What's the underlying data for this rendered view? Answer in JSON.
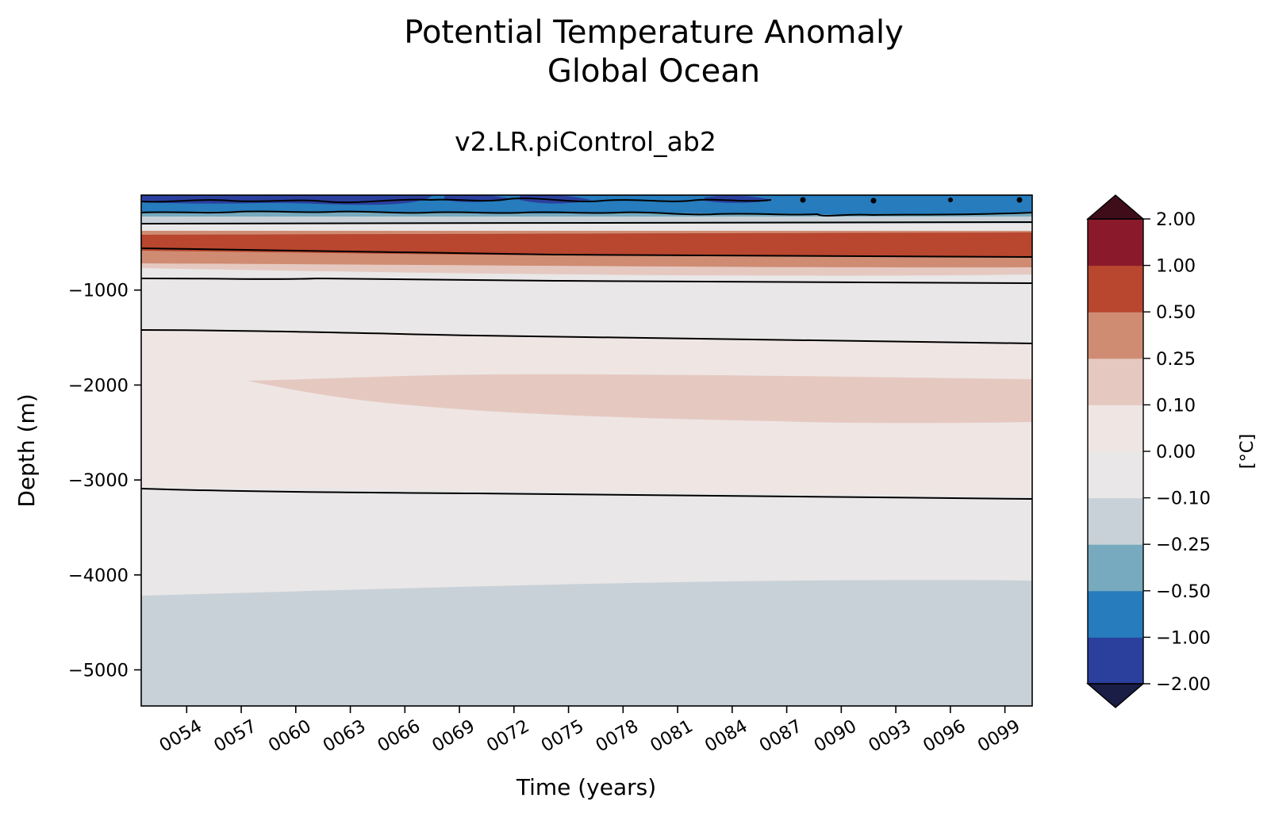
{
  "chart_data": {
    "type": "heatmap",
    "title": "Potential Temperature Anomaly",
    "title_line2": "Global Ocean",
    "subtitle": "v2.LR.piControl_ab2",
    "xlabel": "Time (years)",
    "ylabel": "Depth (m)",
    "x_ticks": [
      "0054",
      "0057",
      "0060",
      "0063",
      "0066",
      "0069",
      "0072",
      "0075",
      "0078",
      "0081",
      "0084",
      "0087",
      "0090",
      "0093",
      "0096",
      "0099"
    ],
    "x_tick_values": [
      54,
      57,
      60,
      63,
      66,
      69,
      72,
      75,
      78,
      81,
      84,
      87,
      90,
      93,
      96,
      99
    ],
    "xlim": [
      51.5,
      100.5
    ],
    "y_ticks": [
      "−1000",
      "−2000",
      "−3000",
      "−4000",
      "−5000"
    ],
    "y_tick_values": [
      -1000,
      -2000,
      -3000,
      -4000,
      -5000
    ],
    "ylim": [
      -5380,
      0
    ],
    "colorbar": {
      "label": "[°C]",
      "levels": [
        "−2.00",
        "−1.00",
        "−0.50",
        "−0.25",
        "−0.10",
        "0.00",
        "0.10",
        "0.25",
        "0.50",
        "1.00",
        "2.00"
      ],
      "colors": [
        "#2b3f9d",
        "#267cbc",
        "#77aabf",
        "#c9d1d8",
        "#e9e7e7",
        "#efe6e4",
        "#e5c9c1",
        "#cf8c73",
        "#b9462f",
        "#8a1a2b"
      ],
      "extend_low_color": "#1a1d45",
      "extend_high_color": "#3f0d19"
    },
    "bands": [
      {
        "name": "deep-pale-blue",
        "value_range": [
          -0.25,
          -0.1
        ],
        "start_depth": -4200,
        "end_depth": -4050
      },
      {
        "name": "mid-depth-positive",
        "value_range": [
          0.1,
          0.25
        ],
        "depth_range_end": [
          -1900,
          -2400
        ]
      },
      {
        "name": "upper-warm",
        "value_range": [
          0.5,
          1.0
        ],
        "depth_range": [
          -400,
          -700
        ]
      },
      {
        "name": "surface-cold",
        "value_range": [
          -2.0,
          -1.0
        ],
        "depth_range": [
          0,
          -150
        ]
      }
    ]
  }
}
